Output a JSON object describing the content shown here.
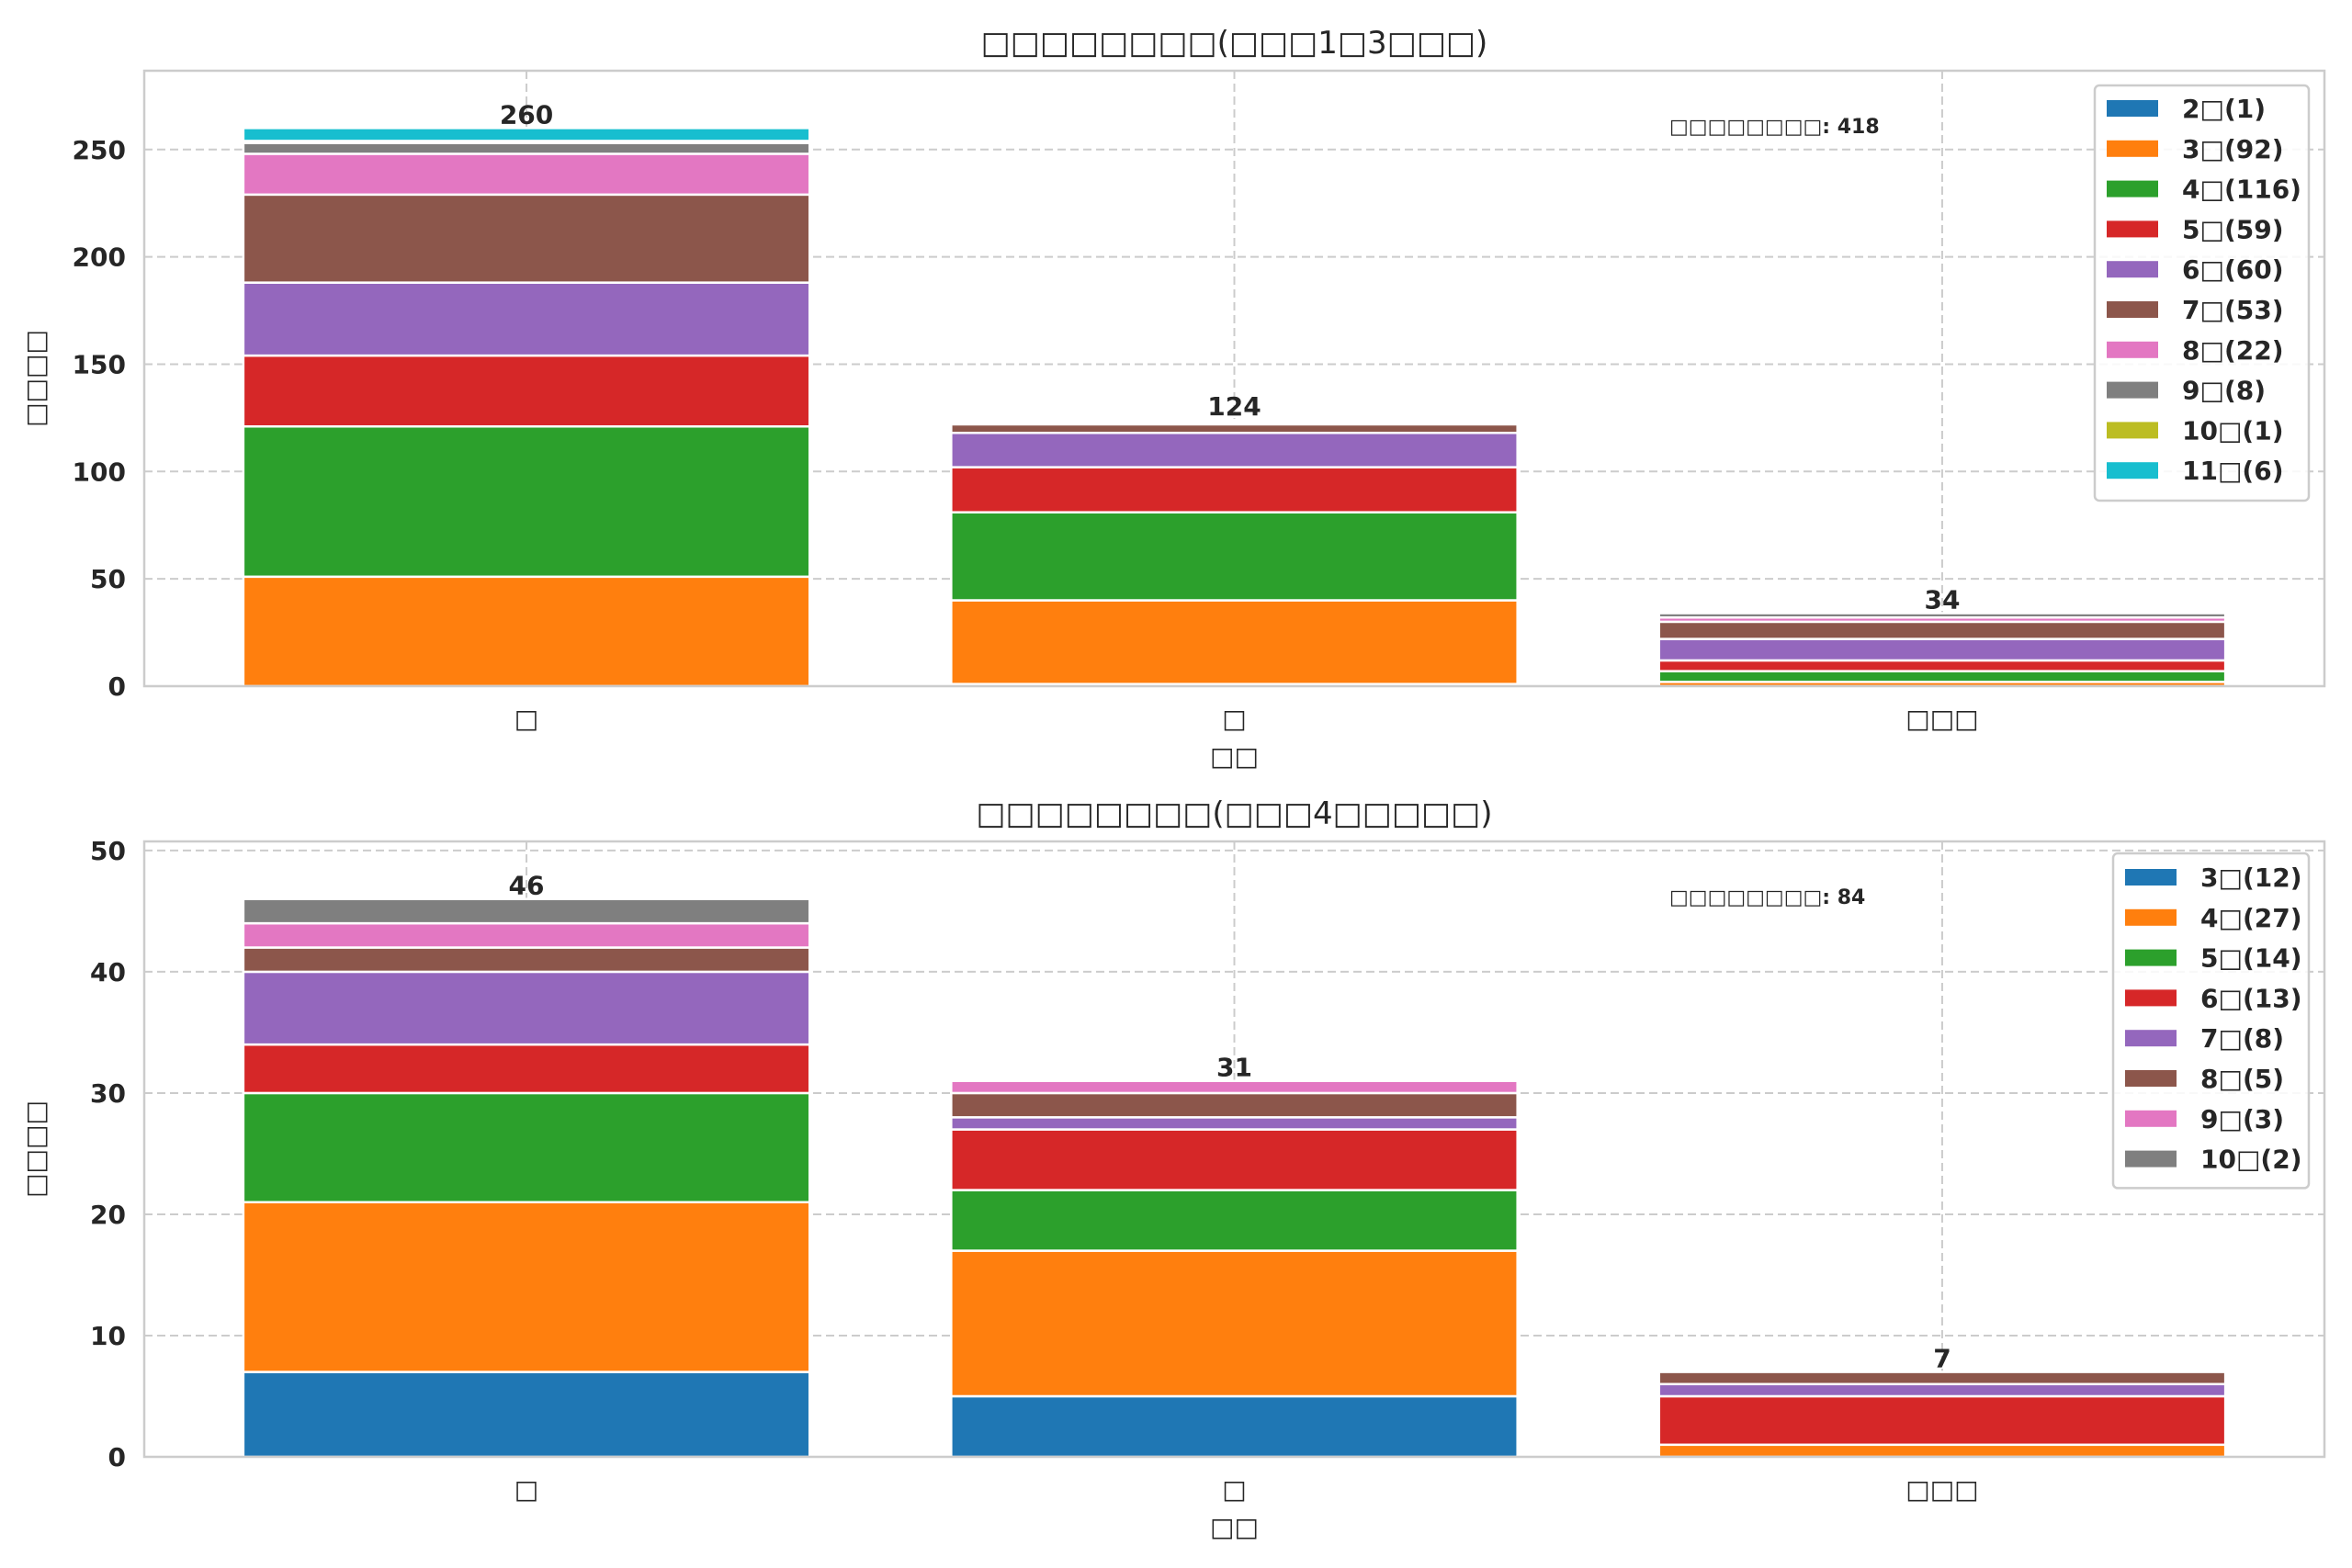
{
  "chart_data": [
    {
      "type": "bar",
      "stacked": true,
      "title": "□□□□□□□□(□□□1□3□□□)",
      "xlabel": "□□",
      "ylabel": "□□□□",
      "categories": [
        "□",
        "□",
        "□□□"
      ],
      "ylim": [
        0,
        286.7
      ],
      "yticks": [
        0,
        50,
        100,
        150,
        200,
        250
      ],
      "grid": true,
      "legend_position": "top-right",
      "annotation": "□□□□□□□□: 418",
      "totals": [
        260,
        124,
        34
      ],
      "series": [
        {
          "name": "2年",
          "legend_label": "2□(1)",
          "color": "#1f77b4",
          "values": [
            0,
            1,
            0
          ]
        },
        {
          "name": "3年",
          "legend_label": "3□(92)",
          "color": "#ff7f0e",
          "values": [
            51,
            39,
            2
          ]
        },
        {
          "name": "4年",
          "legend_label": "4□(116)",
          "color": "#2ca02c",
          "values": [
            70,
            41,
            5
          ]
        },
        {
          "name": "5年",
          "legend_label": "5□(59)",
          "color": "#d62728",
          "values": [
            33,
            21,
            5
          ]
        },
        {
          "name": "6年",
          "legend_label": "6□(60)",
          "color": "#9467bd",
          "values": [
            34,
            16,
            10
          ]
        },
        {
          "name": "7年",
          "legend_label": "7□(53)",
          "color": "#8c564b",
          "values": [
            41,
            4,
            8
          ]
        },
        {
          "name": "8年",
          "legend_label": "8□(22)",
          "color": "#e377c2",
          "values": [
            19,
            1,
            2
          ]
        },
        {
          "name": "9年",
          "legend_label": "9□(8)",
          "color": "#7f7f7f",
          "values": [
            5,
            1,
            2
          ]
        },
        {
          "name": "10年",
          "legend_label": "10□(1)",
          "color": "#bcbd22",
          "values": [
            1,
            0,
            0
          ]
        },
        {
          "name": "11年",
          "legend_label": "11□(6)",
          "color": "#17becf",
          "values": [
            6,
            0,
            0
          ]
        }
      ]
    },
    {
      "type": "bar",
      "stacked": true,
      "title": "□□□□□□□□(□□□4□□□□□)",
      "xlabel": "□□",
      "ylabel": "□□□□",
      "categories": [
        "□",
        "□",
        "□□□"
      ],
      "ylim": [
        0,
        50.75
      ],
      "yticks": [
        0,
        10,
        20,
        30,
        40,
        50
      ],
      "grid": true,
      "legend_position": "top-right",
      "annotation": "□□□□□□□□: 84",
      "totals": [
        46,
        31,
        7
      ],
      "series": [
        {
          "name": "3年",
          "legend_label": "3□(12)",
          "color": "#1f77b4",
          "values": [
            7,
            5,
            0
          ]
        },
        {
          "name": "4年",
          "legend_label": "4□(27)",
          "color": "#ff7f0e",
          "values": [
            14,
            12,
            1
          ]
        },
        {
          "name": "5年",
          "legend_label": "5□(14)",
          "color": "#2ca02c",
          "values": [
            9,
            5,
            0
          ]
        },
        {
          "name": "6年",
          "legend_label": "6□(13)",
          "color": "#d62728",
          "values": [
            4,
            5,
            4
          ]
        },
        {
          "name": "7年",
          "legend_label": "7□(8)",
          "color": "#9467bd",
          "values": [
            6,
            1,
            1
          ]
        },
        {
          "name": "8年",
          "legend_label": "8□(5)",
          "color": "#8c564b",
          "values": [
            2,
            2,
            1
          ]
        },
        {
          "name": "9年",
          "legend_label": "9□(3)",
          "color": "#e377c2",
          "values": [
            2,
            1,
            0
          ]
        },
        {
          "name": "10年",
          "legend_label": "10□(2)",
          "color": "#7f7f7f",
          "values": [
            2,
            0,
            0
          ]
        }
      ]
    }
  ]
}
